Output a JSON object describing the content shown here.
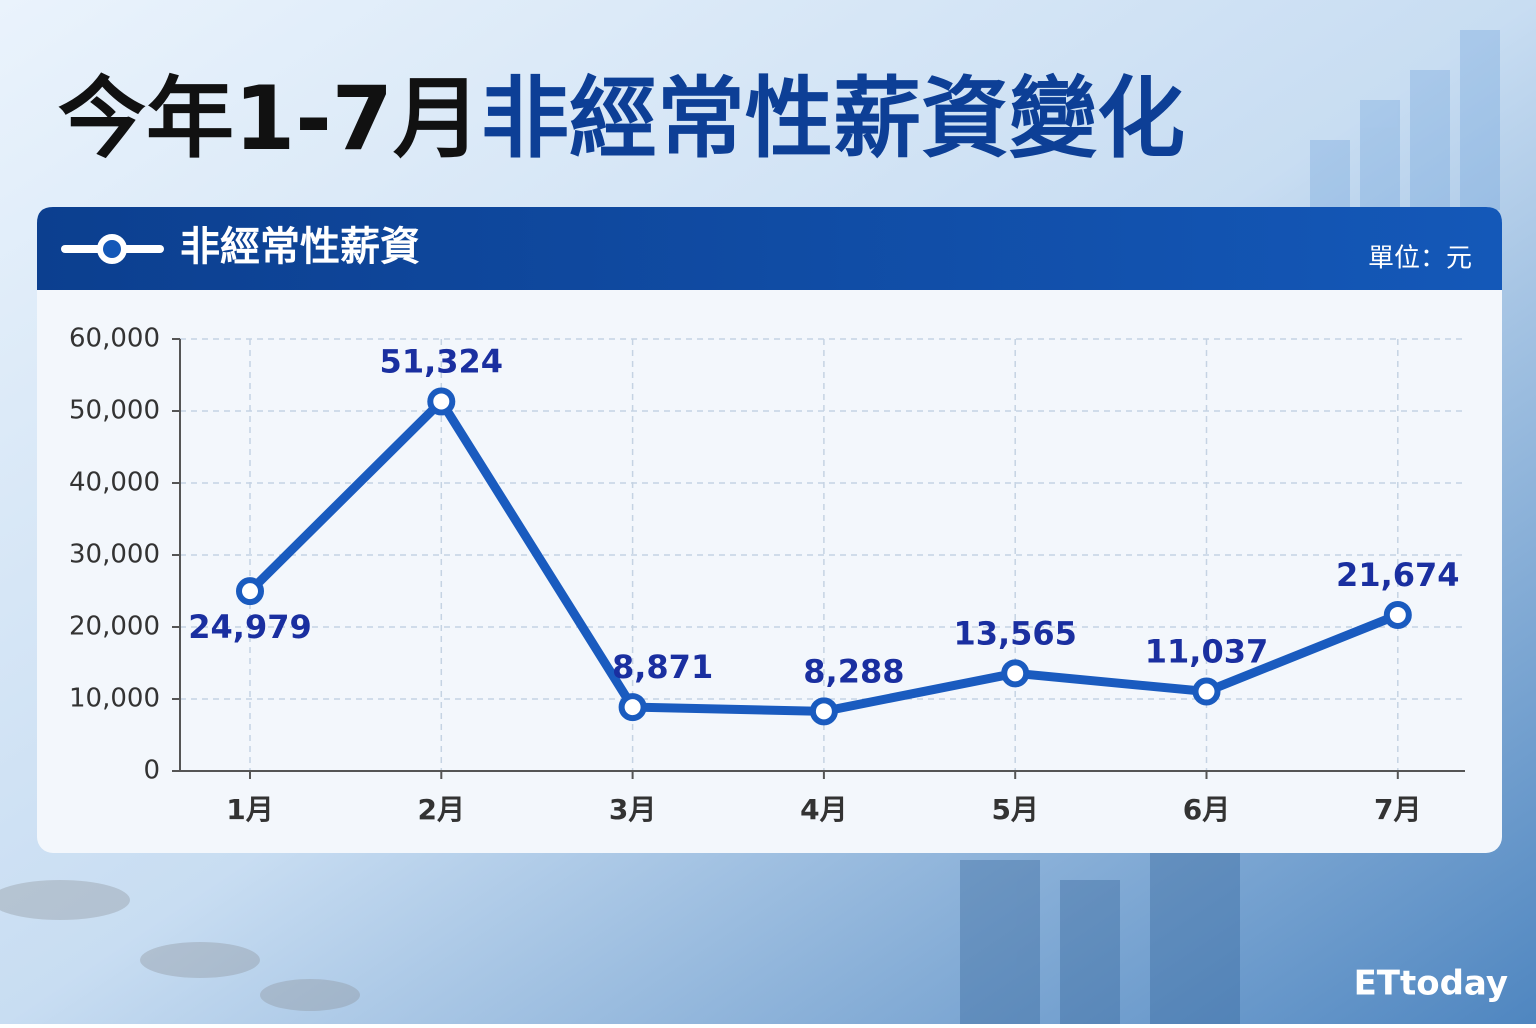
{
  "chart_data": {
    "type": "line",
    "title": [
      "今年1-7月",
      "非經常性薪資變化"
    ],
    "unit": "單位：元",
    "watermark": "ETtoday",
    "categories": [
      "1月",
      "2月",
      "3月",
      "4月",
      "5月",
      "6月",
      "7月"
    ],
    "series": [
      {
        "name": "非經常性薪資",
        "color": "#1a5bbf",
        "values": [
          24979,
          51324,
          8871,
          8288,
          13565,
          11037,
          21674
        ],
        "value_labels": [
          "24,979",
          "51,324",
          "8,871",
          "8,288",
          "13,565",
          "11,037",
          "21,674"
        ]
      }
    ],
    "ylim": [
      0,
      60000
    ],
    "yticks": [
      0,
      {
        "value": 10000,
        "label": "10,000"
      },
      {
        "value": 20000,
        "label": "20,000"
      },
      {
        "value": 30000,
        "label": "30,000"
      },
      {
        "value": 40000,
        "label": "40,000"
      },
      {
        "value": 50000,
        "label": "50,000"
      },
      {
        "value": 60000,
        "label": "60,000"
      }
    ],
    "grid": true
  }
}
